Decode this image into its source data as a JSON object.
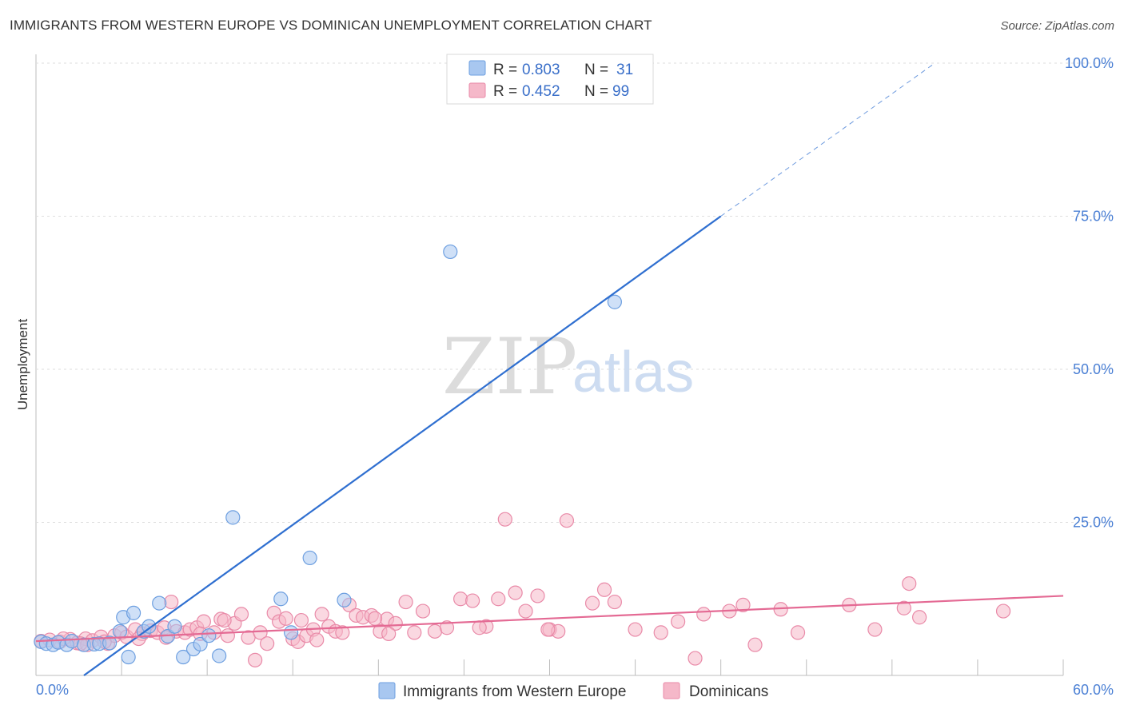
{
  "header": {
    "title": "IMMIGRANTS FROM WESTERN EUROPE VS DOMINICAN UNEMPLOYMENT CORRELATION CHART",
    "source": "Source: ZipAtlas.com"
  },
  "watermark": {
    "zip": "ZIP",
    "atlas": "atlas"
  },
  "legend_top": {
    "rows": [
      {
        "r_label": "R =",
        "r_value": "0.803",
        "n_label": "N =",
        "n_value": "31",
        "color": "#a8c7f0"
      },
      {
        "r_label": "R =",
        "r_value": "0.452",
        "n_label": "N =",
        "n_value": "99",
        "color": "#f5b8c9"
      }
    ]
  },
  "chart_data": {
    "type": "scatter",
    "title": "IMMIGRANTS FROM WESTERN EUROPE VS DOMINICAN UNEMPLOYMENT CORRELATION CHART",
    "xlabel": "",
    "ylabel": "Unemployment",
    "xlim": [
      0,
      60
    ],
    "ylim": [
      0,
      100
    ],
    "x_tick_labels": [
      {
        "value": 0,
        "label": "0.0%"
      },
      {
        "value": 60,
        "label": "60.0%"
      }
    ],
    "y_tick_labels": [
      {
        "value": 25,
        "label": "25.0%"
      },
      {
        "value": 50,
        "label": "50.0%"
      },
      {
        "value": 75,
        "label": "75.0%"
      },
      {
        "value": 100,
        "label": "100.0%"
      }
    ],
    "grid": true,
    "legend_position": "bottom-center",
    "series": [
      {
        "name": "Immigrants from Western Europe",
        "color": "#a8c7f0",
        "edge": "#6d9fe0",
        "line_color": "#2f6fd0",
        "trend": {
          "x0": 2.8,
          "y0": 0,
          "x1": 40,
          "y1": 75,
          "dash_to_x": 52.5,
          "dash_to_y": 100
        },
        "points": [
          [
            0.3,
            5.5
          ],
          [
            0.6,
            5.2
          ],
          [
            1.0,
            5.0
          ],
          [
            1.3,
            5.4
          ],
          [
            1.8,
            5.0
          ],
          [
            2.1,
            5.6
          ],
          [
            2.8,
            5.0
          ],
          [
            3.4,
            5.1
          ],
          [
            3.7,
            5.2
          ],
          [
            4.3,
            5.3
          ],
          [
            4.9,
            7.2
          ],
          [
            5.1,
            9.5
          ],
          [
            5.4,
            3.0
          ],
          [
            5.7,
            10.2
          ],
          [
            6.3,
            7.2
          ],
          [
            6.6,
            8.0
          ],
          [
            7.2,
            11.8
          ],
          [
            7.7,
            6.4
          ],
          [
            8.1,
            8.0
          ],
          [
            8.6,
            3.0
          ],
          [
            9.2,
            4.3
          ],
          [
            9.6,
            5.1
          ],
          [
            10.1,
            6.5
          ],
          [
            10.7,
            3.2
          ],
          [
            11.5,
            25.8
          ],
          [
            14.3,
            12.5
          ],
          [
            14.9,
            7.0
          ],
          [
            16.0,
            19.2
          ],
          [
            18.0,
            12.3
          ],
          [
            24.2,
            69.2
          ],
          [
            33.8,
            61.0
          ]
        ]
      },
      {
        "name": "Dominicans",
        "color": "#f5b8c9",
        "edge": "#e98aa8",
        "line_color": "#e46a94",
        "trend": {
          "x0": 0,
          "y0": 5.6,
          "x1": 60,
          "y1": 13.0
        },
        "points": [
          [
            0.3,
            5.6
          ],
          [
            0.8,
            5.8
          ],
          [
            1.4,
            5.5
          ],
          [
            2.0,
            5.9
          ],
          [
            2.4,
            5.3
          ],
          [
            2.9,
            6.0
          ],
          [
            3.3,
            5.7
          ],
          [
            3.8,
            6.3
          ],
          [
            4.2,
            5.2
          ],
          [
            4.6,
            6.5
          ],
          [
            5.0,
            7.0
          ],
          [
            5.3,
            6.3
          ],
          [
            5.8,
            7.5
          ],
          [
            6.2,
            6.8
          ],
          [
            6.7,
            7.3
          ],
          [
            7.1,
            7.0
          ],
          [
            7.5,
            7.8
          ],
          [
            7.9,
            12.0
          ],
          [
            8.2,
            7.2
          ],
          [
            8.7,
            7.0
          ],
          [
            9.0,
            7.5
          ],
          [
            9.4,
            7.8
          ],
          [
            9.8,
            8.8
          ],
          [
            10.4,
            7.0
          ],
          [
            10.8,
            9.2
          ],
          [
            11.2,
            6.5
          ],
          [
            11.6,
            8.5
          ],
          [
            12.0,
            10.0
          ],
          [
            12.4,
            6.2
          ],
          [
            12.8,
            2.5
          ],
          [
            13.1,
            7.0
          ],
          [
            13.5,
            5.2
          ],
          [
            13.9,
            10.2
          ],
          [
            14.2,
            8.8
          ],
          [
            14.6,
            9.3
          ],
          [
            15.0,
            6.0
          ],
          [
            15.3,
            5.5
          ],
          [
            15.8,
            6.5
          ],
          [
            16.2,
            7.5
          ],
          [
            16.7,
            10.0
          ],
          [
            17.1,
            8.0
          ],
          [
            17.5,
            7.2
          ],
          [
            17.9,
            7.0
          ],
          [
            18.3,
            11.5
          ],
          [
            18.7,
            9.8
          ],
          [
            19.1,
            9.5
          ],
          [
            19.6,
            9.8
          ],
          [
            20.1,
            7.2
          ],
          [
            20.5,
            9.2
          ],
          [
            21.0,
            8.5
          ],
          [
            21.6,
            12.0
          ],
          [
            22.1,
            7.0
          ],
          [
            22.6,
            10.5
          ],
          [
            23.3,
            7.2
          ],
          [
            24.0,
            7.8
          ],
          [
            24.8,
            12.5
          ],
          [
            25.5,
            12.2
          ],
          [
            26.3,
            8.0
          ],
          [
            27.0,
            12.5
          ],
          [
            27.4,
            25.5
          ],
          [
            28.0,
            13.5
          ],
          [
            28.6,
            10.5
          ],
          [
            29.3,
            13.0
          ],
          [
            30.0,
            7.5
          ],
          [
            30.5,
            7.2
          ],
          [
            31.0,
            25.3
          ],
          [
            32.5,
            11.8
          ],
          [
            33.2,
            14.0
          ],
          [
            33.8,
            12.0
          ],
          [
            35.0,
            7.5
          ],
          [
            37.5,
            8.8
          ],
          [
            39.0,
            10.0
          ],
          [
            40.5,
            10.5
          ],
          [
            42.0,
            5.0
          ],
          [
            43.5,
            10.8
          ],
          [
            44.5,
            7.0
          ],
          [
            47.5,
            11.5
          ],
          [
            49.0,
            7.5
          ],
          [
            51.0,
            15.0
          ],
          [
            51.6,
            9.5
          ],
          [
            56.5,
            10.5
          ],
          [
            3.0,
            5.0
          ],
          [
            6.0,
            6.0
          ],
          [
            9.6,
            6.8
          ],
          [
            15.5,
            9.0
          ],
          [
            20.6,
            6.8
          ],
          [
            25.9,
            7.8
          ],
          [
            29.9,
            7.5
          ],
          [
            36.5,
            7.0
          ],
          [
            41.3,
            11.5
          ],
          [
            50.7,
            11.0
          ],
          [
            38.5,
            2.8
          ],
          [
            11.0,
            9.0
          ],
          [
            16.4,
            5.8
          ],
          [
            7.6,
            6.2
          ],
          [
            4.0,
            5.5
          ],
          [
            2.6,
            5.2
          ],
          [
            1.6,
            6.0
          ],
          [
            19.8,
            9.3
          ]
        ]
      }
    ]
  },
  "legend_bottom": {
    "items": [
      {
        "label": "Immigrants from Western Europe",
        "color": "#a8c7f0",
        "edge": "#6d9fe0"
      },
      {
        "label": "Dominicans",
        "color": "#f5b8c9",
        "edge": "#e98aa8"
      }
    ]
  }
}
